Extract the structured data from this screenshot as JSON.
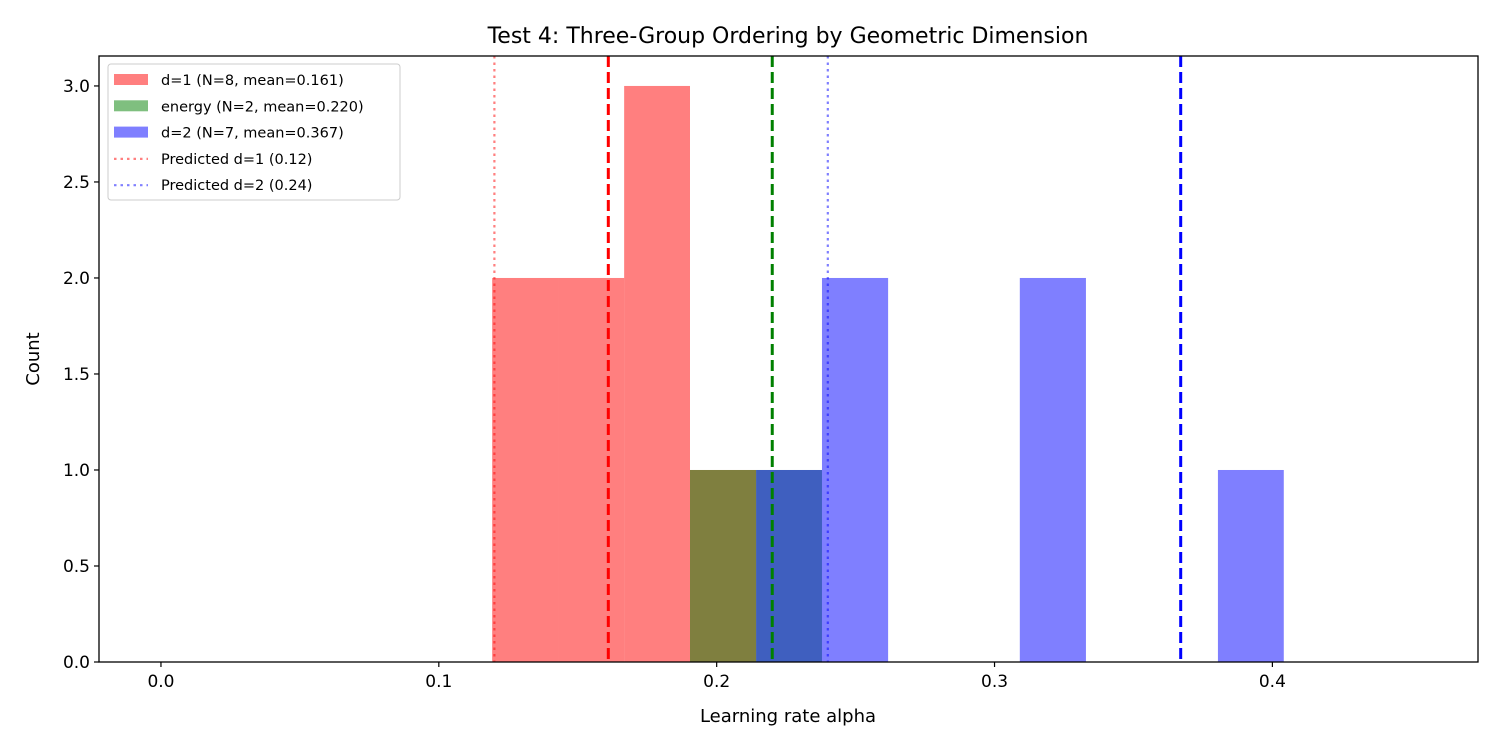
{
  "chart_data": {
    "type": "bar",
    "subtype": "overlaid-histogram",
    "title": "Test 4: Three-Group Ordering by Geometric Dimension",
    "xlabel": "Learning rate alpha",
    "ylabel": "Count",
    "xlim": [
      -0.0223,
      0.474
    ],
    "ylim": [
      0,
      3.156
    ],
    "xticks": [
      "0.0",
      "0.1",
      "0.2",
      "0.3",
      "0.4"
    ],
    "xtick_values": [
      0,
      0.1,
      0.2,
      0.3,
      0.4
    ],
    "yticks": [
      "0.0",
      "0.5",
      "1.0",
      "1.5",
      "2.0",
      "2.5",
      "3.0"
    ],
    "ytick_values": [
      0,
      0.5,
      1,
      1.5,
      2,
      2.5,
      3
    ],
    "grid": false,
    "legend_position": "top-left",
    "bin_edges": [
      0.1192,
      0.1429,
      0.1667,
      0.1904,
      0.2142,
      0.2379,
      0.2617,
      0.2854,
      0.3091,
      0.3329,
      0.3566,
      0.3804,
      0.4041
    ],
    "series": [
      {
        "name": "d=1 (N=8, mean=0.161)",
        "color": "#ff0000",
        "alpha": 0.5,
        "counts": [
          2,
          2,
          3,
          1,
          0,
          0,
          0,
          0,
          0,
          0,
          0,
          0
        ]
      },
      {
        "name": "energy (N=2, mean=0.220)",
        "color": "#008000",
        "alpha": 0.5,
        "counts": [
          0,
          0,
          0,
          1,
          1,
          0,
          0,
          0,
          0,
          0,
          0,
          0
        ]
      },
      {
        "name": "d=2 (N=7, mean=0.367)",
        "color": "#0000ff",
        "alpha": 0.5,
        "counts": [
          0,
          0,
          0,
          0,
          1,
          2,
          0,
          0,
          2,
          0,
          0,
          1
        ]
      }
    ],
    "vlines": [
      {
        "x": 0.161,
        "color": "#ff0000",
        "style": "dashed",
        "alpha": 1
      },
      {
        "x": 0.22,
        "color": "#008000",
        "style": "dashed",
        "alpha": 1
      },
      {
        "x": 0.367,
        "color": "#0000ff",
        "style": "dashed",
        "alpha": 1
      },
      {
        "x": 0.12,
        "color": "#ff0000",
        "style": "dotted",
        "alpha": 0.5,
        "name": "Predicted d=1 (0.12)"
      },
      {
        "x": 0.24,
        "color": "#0000ff",
        "style": "dotted",
        "alpha": 0.5,
        "name": "Predicted d=2 (0.24)"
      }
    ],
    "legend": [
      {
        "label": "d=1 (N=8, mean=0.161)",
        "kind": "patch",
        "color": "#ff0000",
        "alpha": 0.5
      },
      {
        "label": "energy (N=2, mean=0.220)",
        "kind": "patch",
        "color": "#008000",
        "alpha": 0.5
      },
      {
        "label": "d=2 (N=7, mean=0.367)",
        "kind": "patch",
        "color": "#0000ff",
        "alpha": 0.5
      },
      {
        "label": "Predicted d=1 (0.12)",
        "kind": "dotted",
        "color": "#ff0000",
        "alpha": 0.5
      },
      {
        "label": "Predicted d=2 (0.24)",
        "kind": "dotted",
        "color": "#0000ff",
        "alpha": 0.5
      }
    ]
  }
}
